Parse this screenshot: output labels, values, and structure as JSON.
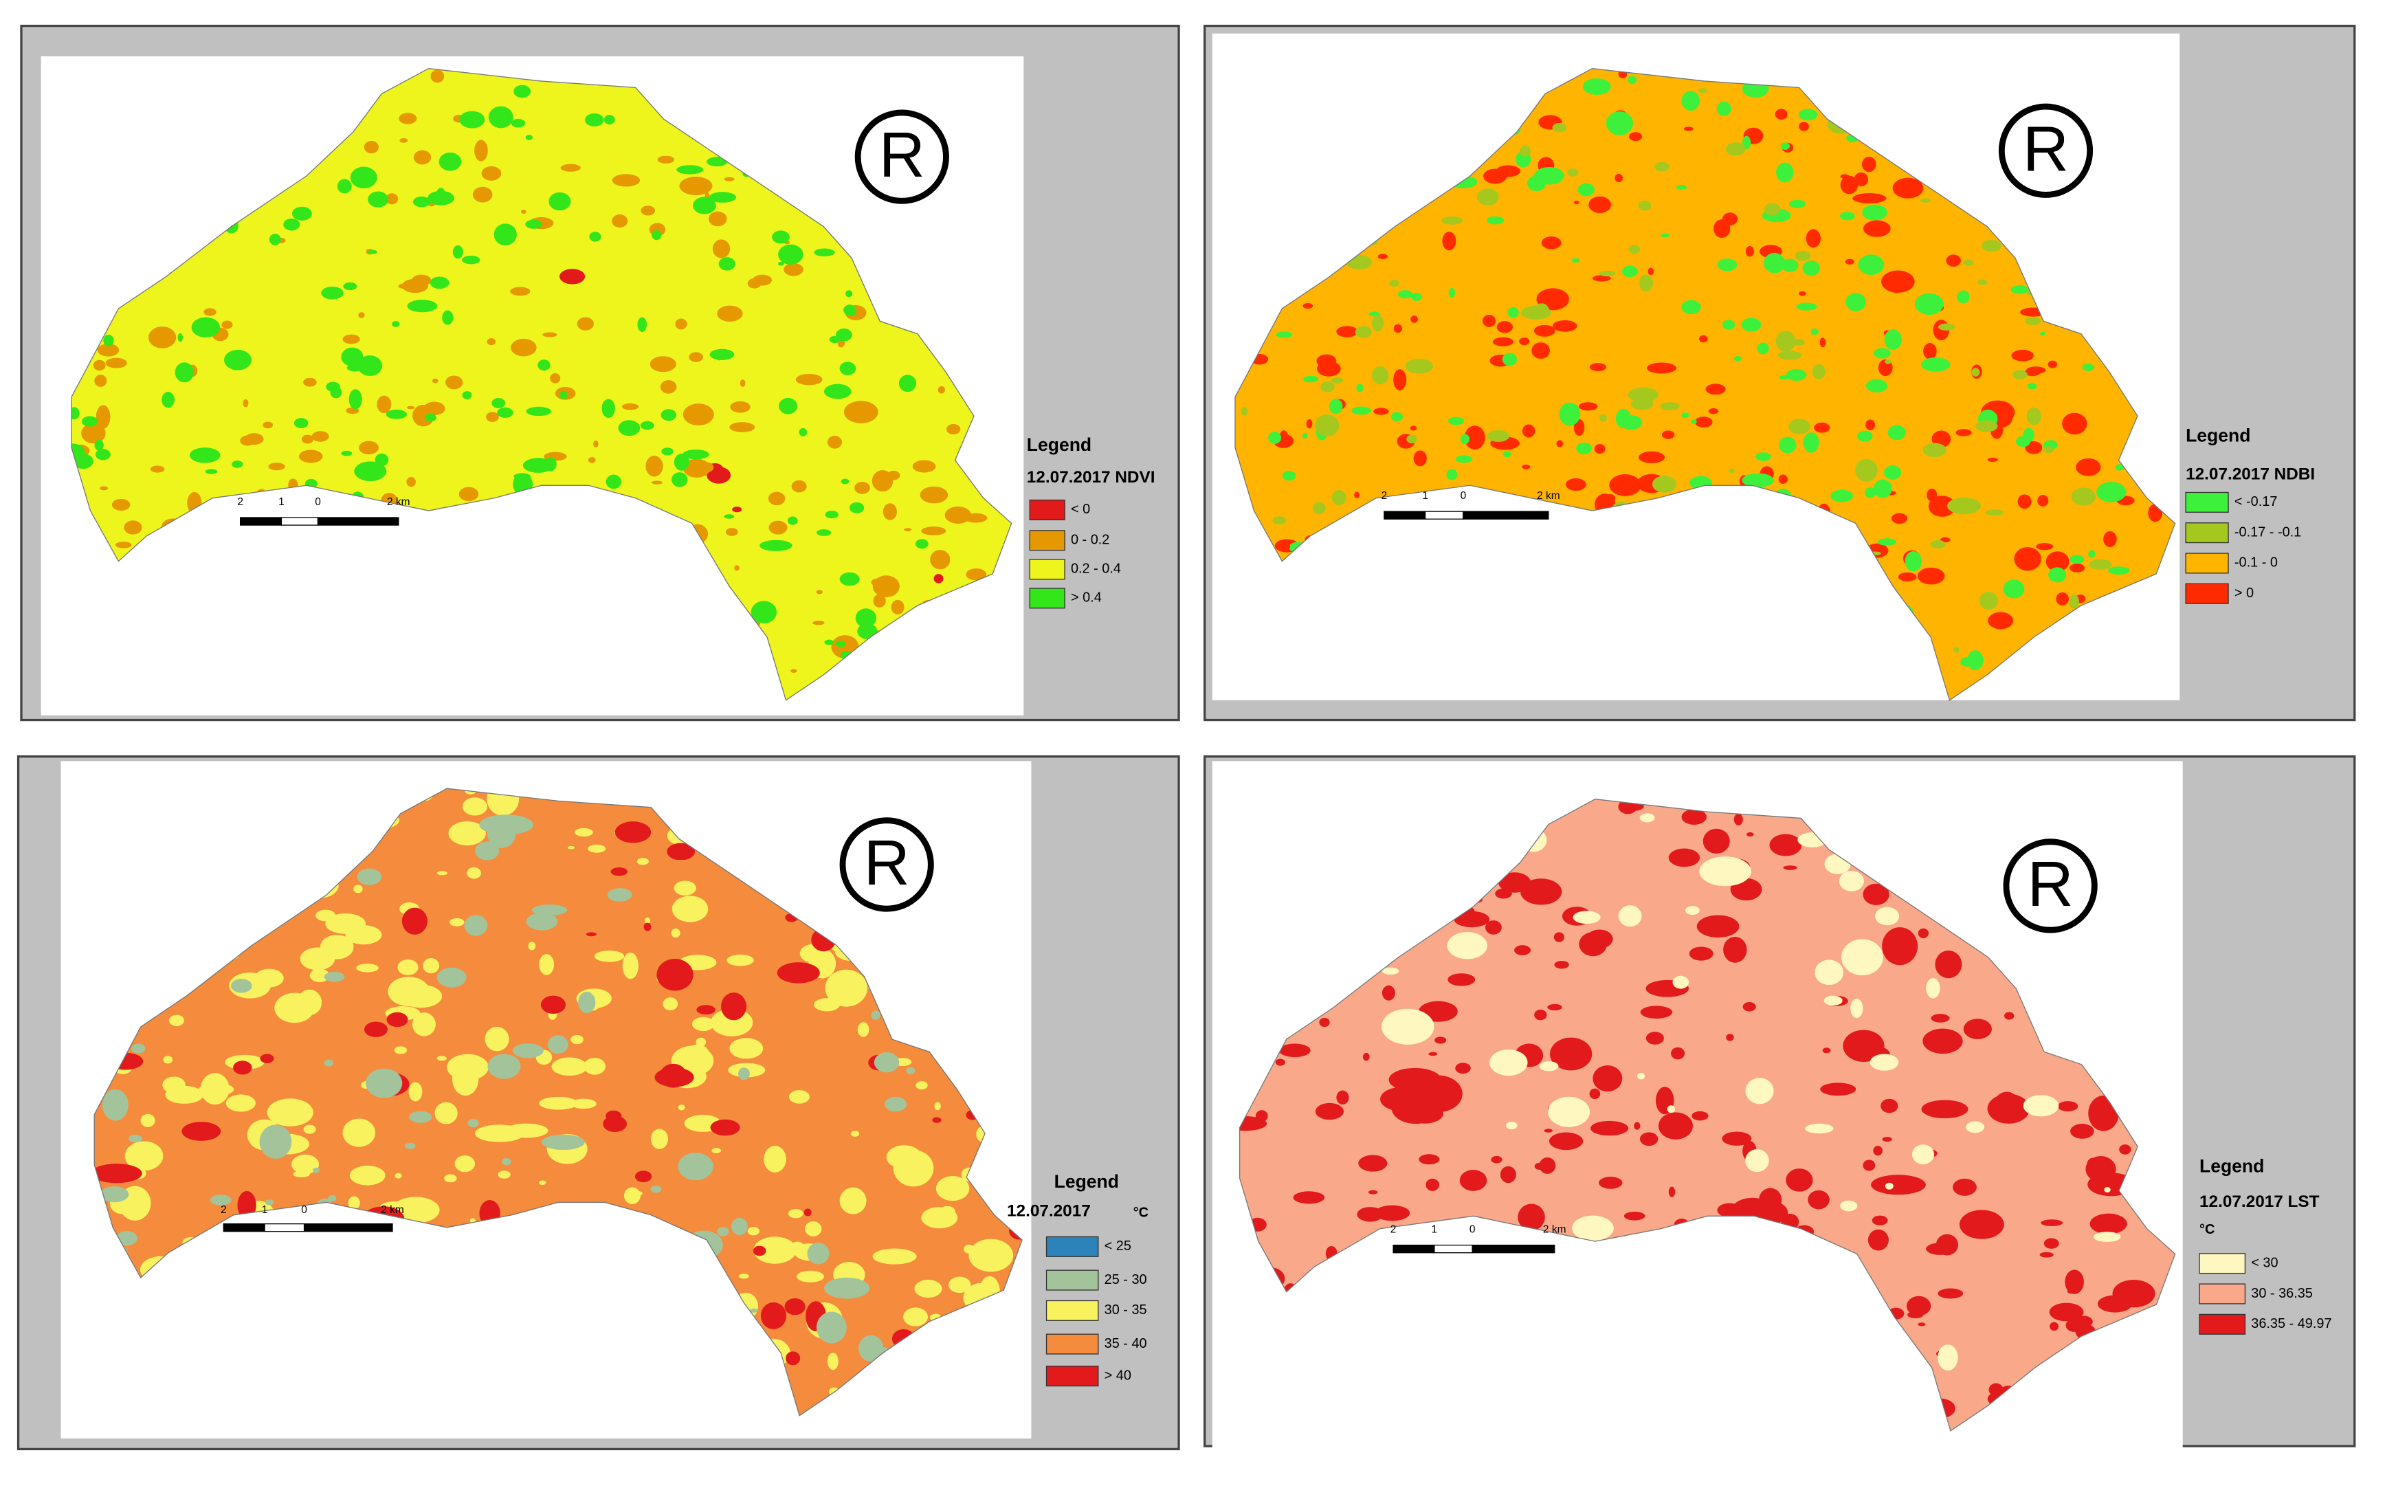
{
  "panels": [
    {
      "symbol": "R",
      "scale_labels": [
        "2",
        "1",
        "0",
        "2 km"
      ],
      "legend": {
        "title": "Legend",
        "subtitle": "12.07.2017 NDVI",
        "items": [
          {
            "label": "< 0",
            "color": "#e31a1c"
          },
          {
            "label": "0 - 0.2",
            "color": "#e69800"
          },
          {
            "label": "0.2 - 0.4",
            "color": "#eef51c"
          },
          {
            "label": "> 0.4",
            "color": "#33e61a"
          }
        ]
      }
    },
    {
      "symbol": "R",
      "scale_labels": [
        "2",
        "1",
        "0",
        "2 km"
      ],
      "legend": {
        "title": "Legend",
        "subtitle": "12.07.2017 NDBI",
        "items": [
          {
            "label": "< -0.17",
            "color": "#3cf03c"
          },
          {
            "label": "-0.17 - -0.1",
            "color": "#a5c81e"
          },
          {
            "label": "-0.1 - 0",
            "color": "#ffb400"
          },
          {
            "label": "> 0",
            "color": "#ff2a00"
          }
        ]
      }
    },
    {
      "symbol": "R",
      "scale_labels": [
        "2",
        "1",
        "0",
        "2 km"
      ],
      "legend": {
        "title": "Legend",
        "subtitle": "12.07.2017",
        "unit": "°C",
        "items": [
          {
            "label": "< 25",
            "color": "#2b83ba"
          },
          {
            "label": "25 - 30",
            "color": "#a3c49b"
          },
          {
            "label": "30 - 35",
            "color": "#f7f25e"
          },
          {
            "label": "35 - 40",
            "color": "#f58b3c"
          },
          {
            "label": "> 40",
            "color": "#e31a1c"
          }
        ]
      }
    },
    {
      "symbol": "R",
      "scale_labels": [
        "2",
        "1",
        "0",
        "2 km"
      ],
      "legend": {
        "title": "Legend",
        "subtitle": "12.07.2017 LST",
        "unit": "°C",
        "items": [
          {
            "label": "< 30",
            "color": "#fff7c0"
          },
          {
            "label": "30 - 36.35",
            "color": "#f9a98a"
          },
          {
            "label": "36.35 - 49.97",
            "color": "#e31a1c"
          }
        ]
      }
    }
  ]
}
